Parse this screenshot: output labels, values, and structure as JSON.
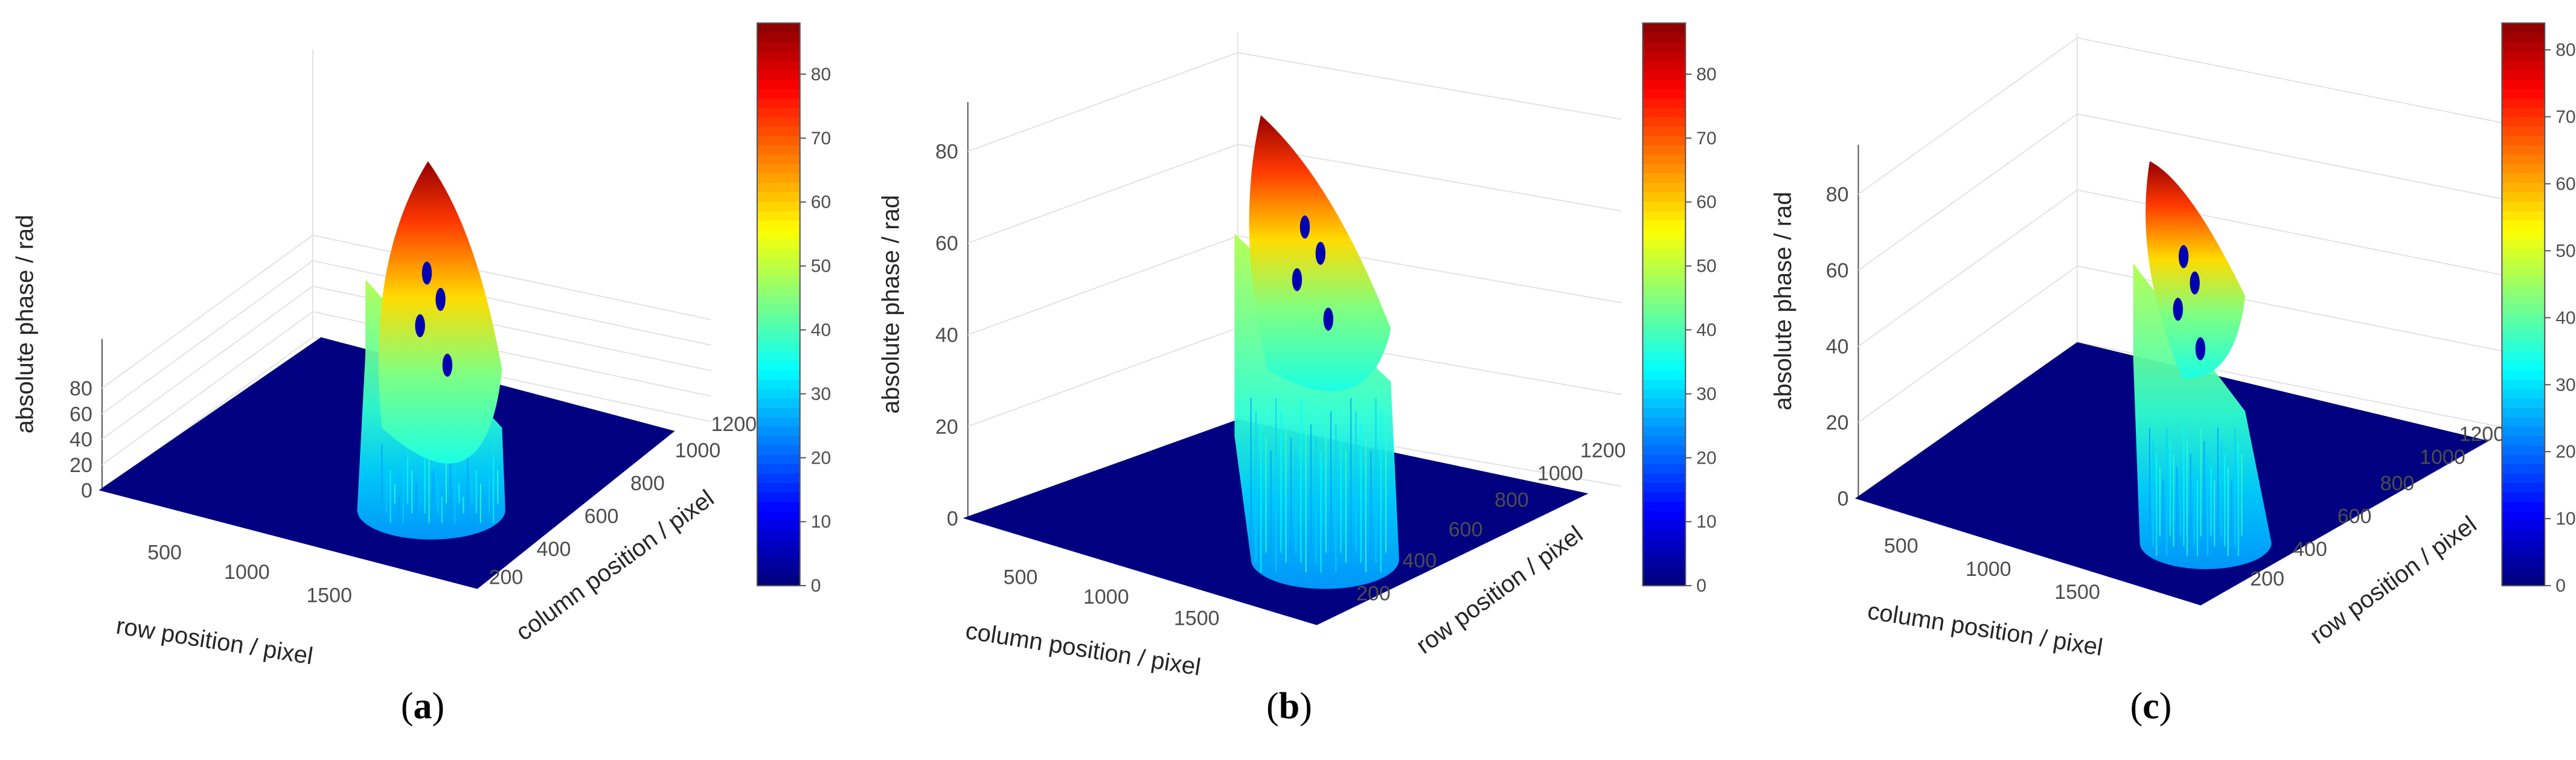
{
  "chart_data": [
    {
      "type": "surface3d",
      "panel_label": "a",
      "zlabel": "absolute phase / rad",
      "xlabel": "row position / pixel",
      "ylabel": "column position / pixel",
      "zticks": [
        0,
        20,
        40,
        60,
        80
      ],
      "xticks": [
        500,
        1000,
        1500
      ],
      "yticks": [
        200,
        400,
        600,
        800,
        1000,
        1200
      ],
      "colorbar_ticks": [
        0,
        10,
        20,
        30,
        40,
        50,
        60,
        70,
        80
      ],
      "clim": [
        0,
        88
      ],
      "colormap": "jet",
      "surface_max": 88
    },
    {
      "type": "surface3d",
      "panel_label": "b",
      "zlabel": "absolute phase / rad",
      "xlabel": "column position / pixel",
      "ylabel": "row position / pixel",
      "zticks": [
        0,
        20,
        40,
        60,
        80
      ],
      "xticks": [
        500,
        1000,
        1500
      ],
      "yticks": [
        200,
        400,
        600,
        800,
        1000,
        1200
      ],
      "colorbar_ticks": [
        0,
        10,
        20,
        30,
        40,
        50,
        60,
        70,
        80
      ],
      "clim": [
        0,
        88
      ],
      "colormap": "jet",
      "surface_max": 84
    },
    {
      "type": "surface3d",
      "panel_label": "c",
      "zlabel": "absolute phase / rad",
      "xlabel": "column position / pixel",
      "ylabel": "row position / pixel",
      "zticks": [
        0,
        20,
        40,
        60,
        80
      ],
      "zticks_text": [
        "0",
        "20",
        "40",
        "60",
        "80"
      ],
      "xticks": [
        500,
        1000,
        1500
      ],
      "yticks": [
        200,
        400,
        600,
        800,
        1000,
        1200
      ],
      "colorbar_ticks": [
        0,
        10,
        20,
        30,
        40,
        50,
        60,
        70,
        80
      ],
      "clim": [
        0,
        84
      ],
      "colormap": "jet",
      "surface_max": 84
    }
  ]
}
